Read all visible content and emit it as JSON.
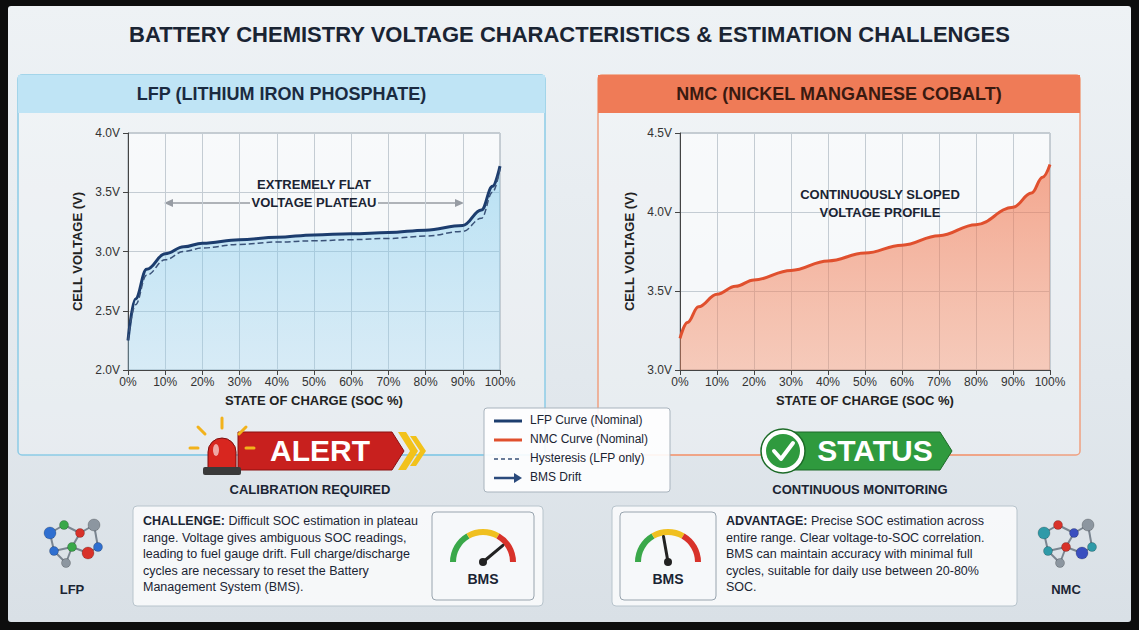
{
  "title": "BATTERY CHEMISTRY VOLTAGE CHARACTERISTICS & ESTIMATION CHALLENGES",
  "chart_data": [
    {
      "type": "line",
      "title": "LFP (LITHIUM IRON PHOSPHATE)",
      "x_label": "STATE OF CHARGE (SOC %)",
      "y_label": "CELL VOLTAGE (V)",
      "annotation": "EXTREMELY FLAT VOLTAGE PLATEAU",
      "x": [
        0,
        2,
        5,
        10,
        15,
        20,
        30,
        40,
        50,
        60,
        70,
        80,
        90,
        95,
        98,
        100
      ],
      "series": [
        {
          "name": "LFP Curve (Nominal)",
          "color": "#1c3d6e",
          "line_style": "solid",
          "values": [
            2.25,
            2.6,
            2.85,
            2.98,
            3.04,
            3.07,
            3.1,
            3.12,
            3.14,
            3.15,
            3.16,
            3.18,
            3.22,
            3.35,
            3.55,
            3.72
          ]
        },
        {
          "name": "Hysteresis (LFP only)",
          "color": "#3a5278",
          "line_style": "dashed",
          "values": [
            2.25,
            2.55,
            2.8,
            2.93,
            3.0,
            3.03,
            3.06,
            3.08,
            3.09,
            3.1,
            3.11,
            3.13,
            3.17,
            3.28,
            3.5,
            3.7
          ]
        }
      ],
      "xlim": [
        0,
        100
      ],
      "xticks": [
        {
          "value": 0,
          "label": "0%"
        },
        {
          "value": 10,
          "label": "10%"
        },
        {
          "value": 20,
          "label": "20%"
        },
        {
          "value": 30,
          "label": "30%"
        },
        {
          "value": 40,
          "label": "40%"
        },
        {
          "value": 50,
          "label": "50%"
        },
        {
          "value": 60,
          "label": "60%"
        },
        {
          "value": 70,
          "label": "70%"
        },
        {
          "value": 80,
          "label": "80%"
        },
        {
          "value": 90,
          "label": "90%"
        },
        {
          "value": 100,
          "label": "100%"
        }
      ],
      "ylim": [
        2.0,
        4.0
      ],
      "yticks": [
        {
          "value": 2.0,
          "label": "2.0V"
        },
        {
          "value": 2.5,
          "label": "2.5V"
        },
        {
          "value": 3.0,
          "label": "3.0V"
        },
        {
          "value": 3.5,
          "label": "3.5V"
        },
        {
          "value": 4.0,
          "label": "4.0V"
        }
      ],
      "grid": true
    },
    {
      "type": "line",
      "title": "NMC (NICKEL MANGANESE COBALT)",
      "x_label": "STATE OF CHARGE (SOC %)",
      "y_label": "CELL VOLTAGE (V)",
      "annotation": "CONTINUOUSLY SLOPED VOLTAGE PROFILE",
      "x": [
        0,
        2,
        5,
        10,
        15,
        20,
        30,
        40,
        50,
        60,
        70,
        80,
        90,
        95,
        98,
        100
      ],
      "series": [
        {
          "name": "NMC Curve (Nominal)",
          "color": "#e0502e",
          "line_style": "solid",
          "values": [
            3.2,
            3.3,
            3.4,
            3.48,
            3.53,
            3.57,
            3.63,
            3.69,
            3.74,
            3.79,
            3.85,
            3.92,
            4.03,
            4.12,
            4.22,
            4.3
          ]
        }
      ],
      "xlim": [
        0,
        100
      ],
      "xticks": [
        {
          "value": 0,
          "label": "0%"
        },
        {
          "value": 10,
          "label": "10%"
        },
        {
          "value": 20,
          "label": "20%"
        },
        {
          "value": 30,
          "label": "30%"
        },
        {
          "value": 40,
          "label": "40%"
        },
        {
          "value": 50,
          "label": "50%"
        },
        {
          "value": 60,
          "label": "60%"
        },
        {
          "value": 70,
          "label": "70%"
        },
        {
          "value": 80,
          "label": "80%"
        },
        {
          "value": 90,
          "label": "90%"
        },
        {
          "value": 100,
          "label": "100%"
        }
      ],
      "ylim": [
        3.0,
        4.5
      ],
      "yticks": [
        {
          "value": 3.0,
          "label": "3.0V"
        },
        {
          "value": 3.5,
          "label": "3.5V"
        },
        {
          "value": 4.0,
          "label": "4.0V"
        },
        {
          "value": 4.5,
          "label": "4.5V"
        }
      ],
      "grid": true
    }
  ],
  "legend_items": [
    {
      "label": "LFP Curve (Nominal)",
      "color": "#1c3d6e",
      "line_style": "solid"
    },
    {
      "label": "NMC Curve (Nominal)",
      "color": "#e0502e",
      "line_style": "solid"
    },
    {
      "label": "Hysteresis (LFP only)",
      "color": "#3a5278",
      "line_style": "dashed"
    },
    {
      "label": "BMS Drift",
      "color": "#2a4a7c",
      "line_style": "arrow"
    }
  ],
  "alert": {
    "label": "ALERT",
    "caption": "CALIBRATION REQUIRED"
  },
  "status": {
    "label": "STATUS",
    "caption": "CONTINUOUS MONITORING"
  },
  "challenge": {
    "heading": "CHALLENGE:",
    "text": "Difficult SOC estimation in plateau range. Voltage gives ambiguous SOC readings, leading to fuel gauge drift. Full charge/discharge cycles are necessary to reset the Battery Management System (BMS).",
    "gauge": "BMS"
  },
  "advantage": {
    "heading": "ADVANTAGE:",
    "text": "Precise SOC estimation across entire range. Clear voltage-to-SOC correlation. BMS can maintain accuracy with minimal full cycles, suitable for daily use between 20-80% SOC.",
    "gauge": "BMS"
  },
  "icons": [
    "LFP",
    "NMC"
  ]
}
